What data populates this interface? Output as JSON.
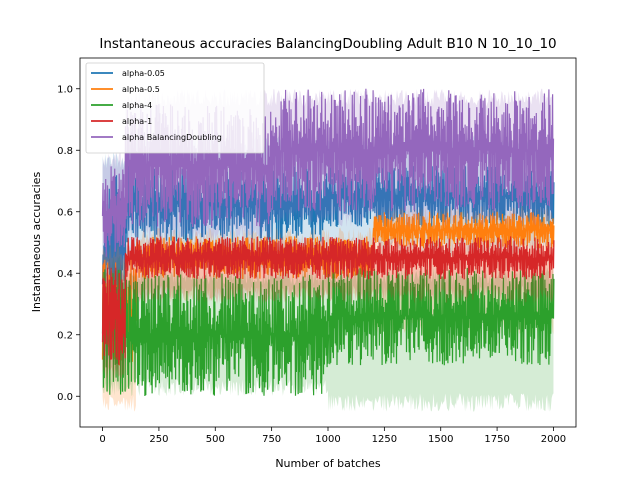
{
  "chart_data": {
    "type": "line",
    "title": "Instantaneous accuracies BalancingDoubling Adult B10 N 10_10_10",
    "xlabel": "Number of batches",
    "ylabel": "Instantaneous accuracies",
    "xlim": [
      -100,
      2100
    ],
    "ylim": [
      -0.1,
      1.1
    ],
    "xticks": [
      0,
      250,
      500,
      750,
      1000,
      1250,
      1500,
      1750,
      2000
    ],
    "yticks": [
      0.0,
      0.2,
      0.4,
      0.6,
      0.8,
      1.0
    ],
    "xtick_labels": [
      "0",
      "250",
      "500",
      "750",
      "1000",
      "1250",
      "1500",
      "1750",
      "2000"
    ],
    "ytick_labels": [
      "0.0",
      "0.2",
      "0.4",
      "0.6",
      "0.8",
      "1.0"
    ],
    "grid": false,
    "legend_position": "upper-left",
    "n_batches": 2000,
    "series": [
      {
        "name": "alpha-0.05",
        "color": "#1f77b4",
        "segments": [
          {
            "x": [
              0,
              100
            ],
            "low": 0.2,
            "high": 0.72,
            "band_low": 0.1,
            "band_high": 0.8
          },
          {
            "x": [
              100,
              1000
            ],
            "low": 0.5,
            "high": 0.75,
            "band_low": 0.4,
            "band_high": 0.85
          },
          {
            "x": [
              1000,
              2000
            ],
            "low": 0.55,
            "high": 0.75,
            "band_low": 0.45,
            "band_high": 0.85
          }
        ]
      },
      {
        "name": "alpha-0.5",
        "color": "#ff7f0e",
        "segments": [
          {
            "x": [
              0,
              150
            ],
            "low": 0.1,
            "high": 0.45,
            "band_low": -0.05,
            "band_high": 0.5
          },
          {
            "x": [
              150,
              1200
            ],
            "low": 0.38,
            "high": 0.52,
            "band_low": 0.3,
            "band_high": 0.55
          },
          {
            "x": [
              1200,
              2000
            ],
            "low": 0.48,
            "high": 0.6,
            "band_low": 0.2,
            "band_high": 0.62
          }
        ]
      },
      {
        "name": "alpha-4",
        "color": "#2ca02c",
        "segments": [
          {
            "x": [
              0,
              100
            ],
            "low": 0.0,
            "high": 0.42,
            "band_low": 0.0,
            "band_high": 0.42
          },
          {
            "x": [
              100,
              1000
            ],
            "low": 0.0,
            "high": 0.4,
            "band_low": 0.0,
            "band_high": 0.42
          },
          {
            "x": [
              1000,
              2000
            ],
            "low": 0.1,
            "high": 0.42,
            "band_low": -0.05,
            "band_high": 0.42
          }
        ]
      },
      {
        "name": "alpha-1",
        "color": "#d62728",
        "segments": [
          {
            "x": [
              0,
              100
            ],
            "low": 0.1,
            "high": 0.42,
            "band_low": 0.05,
            "band_high": 0.45
          },
          {
            "x": [
              100,
              2000
            ],
            "low": 0.38,
            "high": 0.52,
            "band_low": 0.3,
            "band_high": 0.52
          }
        ]
      },
      {
        "name": "alpha BalancingDoubling",
        "color": "#9467bd",
        "segments": [
          {
            "x": [
              0,
              100
            ],
            "low": 0.45,
            "high": 0.75,
            "band_low": 0.4,
            "band_high": 0.8
          },
          {
            "x": [
              100,
              750
            ],
            "low": 0.55,
            "high": 0.95,
            "band_low": 0.5,
            "band_high": 1.0
          },
          {
            "x": [
              750,
              2000
            ],
            "low": 0.6,
            "high": 1.0,
            "band_low": 0.55,
            "band_high": 1.0
          }
        ]
      }
    ]
  }
}
